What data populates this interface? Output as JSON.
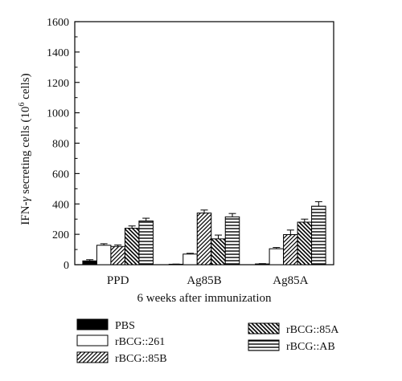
{
  "chart_data": {
    "type": "bar",
    "categories": [
      "PPD",
      "Ag85B",
      "Ag85A"
    ],
    "series": [
      {
        "name": "PBS",
        "values": [
          25,
          3,
          5
        ],
        "errors": [
          8,
          1,
          2
        ],
        "pattern": "solid"
      },
      {
        "name": "rBCG::261",
        "values": [
          128,
          70,
          105
        ],
        "errors": [
          10,
          5,
          8
        ],
        "pattern": "empty"
      },
      {
        "name": "rBCG::85B",
        "values": [
          120,
          340,
          198
        ],
        "errors": [
          10,
          20,
          30
        ],
        "pattern": "diag-up"
      },
      {
        "name": "rBCG::85A",
        "values": [
          240,
          170,
          280
        ],
        "errors": [
          15,
          25,
          20
        ],
        "pattern": "diag-down"
      },
      {
        "name": "rBCG::AB",
        "values": [
          288,
          315,
          385
        ],
        "errors": [
          18,
          22,
          30
        ],
        "pattern": "horizontal"
      }
    ],
    "ylabel": "IFN-γ secreting cells (10^6 cells)",
    "ylabel_parts": {
      "prefix": "IFN-",
      "gamma": "γ",
      "mid": " secreting cells (10",
      "sup": "6",
      "suffix": " cells)"
    },
    "xlabel": "6 weeks after immunization",
    "ylim": [
      0,
      1600
    ],
    "yticks": [
      0,
      200,
      400,
      600,
      800,
      1000,
      1200,
      1400,
      1600
    ],
    "grid": false,
    "legend_position": "bottom",
    "colors": {
      "ink": "#111111",
      "fill_solid": "#000000",
      "fill_empty": "#ffffff"
    }
  }
}
